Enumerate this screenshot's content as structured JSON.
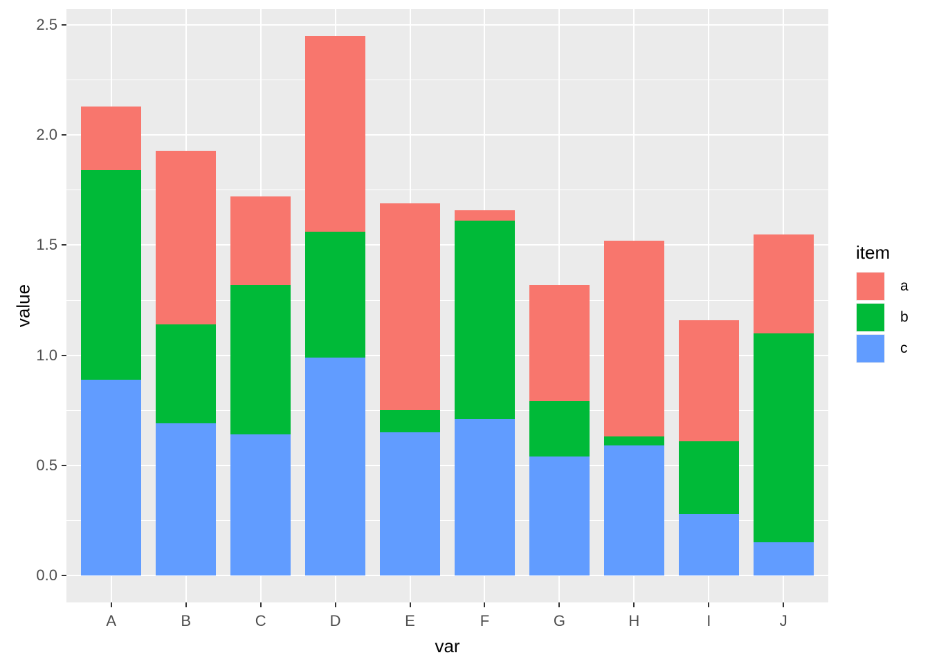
{
  "chart_data": {
    "type": "bar",
    "stacked": true,
    "title": "",
    "xlabel": "var",
    "ylabel": "value",
    "categories": [
      "A",
      "B",
      "C",
      "D",
      "E",
      "F",
      "G",
      "H",
      "I",
      "J"
    ],
    "series": [
      {
        "name": "c",
        "color": "#619CFF",
        "values": [
          0.89,
          0.69,
          0.64,
          0.99,
          0.65,
          0.71,
          0.54,
          0.59,
          0.28,
          0.15
        ]
      },
      {
        "name": "b",
        "color": "#00BA38",
        "values": [
          0.95,
          0.45,
          0.68,
          0.57,
          0.1,
          0.9,
          0.25,
          0.04,
          0.33,
          0.95
        ]
      },
      {
        "name": "a",
        "color": "#F8766D",
        "values": [
          0.29,
          0.79,
          0.4,
          0.89,
          0.94,
          0.05,
          0.53,
          0.89,
          0.55,
          0.45
        ]
      }
    ],
    "stack_order_bottom_to_top": [
      "c",
      "b",
      "a"
    ],
    "y_ticks": [
      {
        "label": "0.0",
        "value": 0.0
      },
      {
        "label": "0.5",
        "value": 0.5
      },
      {
        "label": "1.0",
        "value": 1.0
      },
      {
        "label": "1.5",
        "value": 1.5
      },
      {
        "label": "2.0",
        "value": 2.0
      },
      {
        "label": "2.5",
        "value": 2.5
      }
    ],
    "ylim": [
      0.0,
      2.5
    ],
    "grid": true,
    "legend": {
      "title": "item",
      "position": "right",
      "entries": [
        {
          "label": "a",
          "color": "#F8766D"
        },
        {
          "label": "b",
          "color": "#00BA38"
        },
        {
          "label": "c",
          "color": "#619CFF"
        }
      ]
    },
    "colors": {
      "panel_background": "#EBEBEB",
      "grid": "#FFFFFF",
      "tick_marks": "#333333",
      "axis_text": "#4D4D4D",
      "axis_title": "#000000",
      "legend_key_background": "#F2F2F2"
    }
  }
}
